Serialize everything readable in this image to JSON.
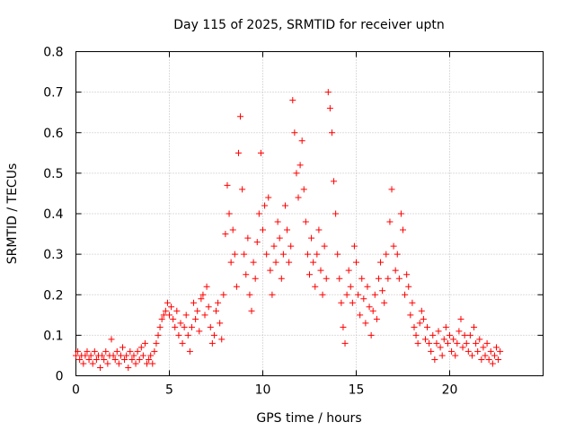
{
  "chart_data": {
    "type": "scatter",
    "title": "Day 115 of 2025, SRMTID for receiver uptn",
    "xlabel": "GPS time / hours",
    "ylabel": "SRMTID / TECUs",
    "xlim": [
      0,
      25
    ],
    "ylim": [
      0,
      0.8
    ],
    "xticks": [
      0,
      5,
      10,
      15,
      20
    ],
    "yticks": [
      0,
      0.1,
      0.2,
      0.3,
      0.4,
      0.5,
      0.6,
      0.7,
      0.8
    ],
    "xtick_labels": [
      "0",
      "5",
      "10",
      "15",
      "20"
    ],
    "ytick_labels": [
      "0",
      "0.1",
      "0.2",
      "0.3",
      "0.4",
      "0.5",
      "0.6",
      "0.7",
      "0.8"
    ],
    "grid": true,
    "marker": "plus",
    "color": "#ff0000",
    "series": [
      {
        "name": "SRMTID",
        "points": [
          [
            0.0,
            0.05
          ],
          [
            0.1,
            0.06
          ],
          [
            0.2,
            0.04
          ],
          [
            0.3,
            0.05
          ],
          [
            0.4,
            0.03
          ],
          [
            0.5,
            0.05
          ],
          [
            0.6,
            0.06
          ],
          [
            0.7,
            0.04
          ],
          [
            0.8,
            0.05
          ],
          [
            0.9,
            0.03
          ],
          [
            1.0,
            0.06
          ],
          [
            1.1,
            0.04
          ],
          [
            1.2,
            0.05
          ],
          [
            1.3,
            0.02
          ],
          [
            1.4,
            0.05
          ],
          [
            1.5,
            0.04
          ],
          [
            1.6,
            0.06
          ],
          [
            1.7,
            0.03
          ],
          [
            1.8,
            0.05
          ],
          [
            1.9,
            0.09
          ],
          [
            2.0,
            0.05
          ],
          [
            2.1,
            0.04
          ],
          [
            2.2,
            0.06
          ],
          [
            2.3,
            0.03
          ],
          [
            2.4,
            0.05
          ],
          [
            2.5,
            0.07
          ],
          [
            2.6,
            0.04
          ],
          [
            2.7,
            0.05
          ],
          [
            2.8,
            0.02
          ],
          [
            2.9,
            0.06
          ],
          [
            3.0,
            0.04
          ],
          [
            3.1,
            0.05
          ],
          [
            3.2,
            0.03
          ],
          [
            3.3,
            0.06
          ],
          [
            3.4,
            0.04
          ],
          [
            3.5,
            0.07
          ],
          [
            3.6,
            0.05
          ],
          [
            3.7,
            0.08
          ],
          [
            3.8,
            0.03
          ],
          [
            3.9,
            0.04
          ],
          [
            4.0,
            0.05
          ],
          [
            4.1,
            0.03
          ],
          [
            4.2,
            0.06
          ],
          [
            4.3,
            0.08
          ],
          [
            4.4,
            0.1
          ],
          [
            4.5,
            0.12
          ],
          [
            4.6,
            0.14
          ],
          [
            4.7,
            0.15
          ],
          [
            4.8,
            0.16
          ],
          [
            4.9,
            0.18
          ],
          [
            5.0,
            0.15
          ],
          [
            5.1,
            0.17
          ],
          [
            5.2,
            0.14
          ],
          [
            5.3,
            0.12
          ],
          [
            5.4,
            0.16
          ],
          [
            5.5,
            0.1
          ],
          [
            5.6,
            0.13
          ],
          [
            5.7,
            0.08
          ],
          [
            5.8,
            0.12
          ],
          [
            5.9,
            0.15
          ],
          [
            6.0,
            0.1
          ],
          [
            6.1,
            0.06
          ],
          [
            6.2,
            0.12
          ],
          [
            6.3,
            0.18
          ],
          [
            6.4,
            0.14
          ],
          [
            6.5,
            0.16
          ],
          [
            6.6,
            0.11
          ],
          [
            6.7,
            0.19
          ],
          [
            6.8,
            0.2
          ],
          [
            6.9,
            0.15
          ],
          [
            7.0,
            0.22
          ],
          [
            7.1,
            0.17
          ],
          [
            7.2,
            0.12
          ],
          [
            7.3,
            0.08
          ],
          [
            7.4,
            0.1
          ],
          [
            7.5,
            0.16
          ],
          [
            7.6,
            0.18
          ],
          [
            7.7,
            0.13
          ],
          [
            7.8,
            0.09
          ],
          [
            7.9,
            0.2
          ],
          [
            8.0,
            0.35
          ],
          [
            8.1,
            0.47
          ],
          [
            8.2,
            0.4
          ],
          [
            8.3,
            0.28
          ],
          [
            8.4,
            0.36
          ],
          [
            8.5,
            0.3
          ],
          [
            8.6,
            0.22
          ],
          [
            8.7,
            0.55
          ],
          [
            8.8,
            0.64
          ],
          [
            8.9,
            0.46
          ],
          [
            9.0,
            0.3
          ],
          [
            9.1,
            0.25
          ],
          [
            9.2,
            0.34
          ],
          [
            9.3,
            0.2
          ],
          [
            9.4,
            0.16
          ],
          [
            9.5,
            0.28
          ],
          [
            9.6,
            0.24
          ],
          [
            9.7,
            0.33
          ],
          [
            9.8,
            0.4
          ],
          [
            9.9,
            0.55
          ],
          [
            10.0,
            0.36
          ],
          [
            10.1,
            0.42
          ],
          [
            10.2,
            0.3
          ],
          [
            10.3,
            0.44
          ],
          [
            10.4,
            0.26
          ],
          [
            10.5,
            0.2
          ],
          [
            10.6,
            0.32
          ],
          [
            10.7,
            0.28
          ],
          [
            10.8,
            0.38
          ],
          [
            10.9,
            0.34
          ],
          [
            11.0,
            0.24
          ],
          [
            11.1,
            0.3
          ],
          [
            11.2,
            0.42
          ],
          [
            11.3,
            0.36
          ],
          [
            11.4,
            0.28
          ],
          [
            11.5,
            0.32
          ],
          [
            11.6,
            0.68
          ],
          [
            11.7,
            0.6
          ],
          [
            11.8,
            0.5
          ],
          [
            11.9,
            0.44
          ],
          [
            12.0,
            0.52
          ],
          [
            12.1,
            0.58
          ],
          [
            12.2,
            0.46
          ],
          [
            12.3,
            0.38
          ],
          [
            12.4,
            0.3
          ],
          [
            12.5,
            0.25
          ],
          [
            12.6,
            0.34
          ],
          [
            12.7,
            0.28
          ],
          [
            12.8,
            0.22
          ],
          [
            12.9,
            0.3
          ],
          [
            13.0,
            0.36
          ],
          [
            13.1,
            0.26
          ],
          [
            13.2,
            0.2
          ],
          [
            13.3,
            0.32
          ],
          [
            13.4,
            0.24
          ],
          [
            13.5,
            0.7
          ],
          [
            13.6,
            0.66
          ],
          [
            13.7,
            0.6
          ],
          [
            13.8,
            0.48
          ],
          [
            13.9,
            0.4
          ],
          [
            14.0,
            0.3
          ],
          [
            14.1,
            0.24
          ],
          [
            14.2,
            0.18
          ],
          [
            14.3,
            0.12
          ],
          [
            14.4,
            0.08
          ],
          [
            14.5,
            0.2
          ],
          [
            14.6,
            0.26
          ],
          [
            14.7,
            0.22
          ],
          [
            14.8,
            0.18
          ],
          [
            14.9,
            0.32
          ],
          [
            15.0,
            0.28
          ],
          [
            15.1,
            0.2
          ],
          [
            15.2,
            0.15
          ],
          [
            15.3,
            0.24
          ],
          [
            15.4,
            0.19
          ],
          [
            15.5,
            0.13
          ],
          [
            15.6,
            0.22
          ],
          [
            15.7,
            0.17
          ],
          [
            15.8,
            0.1
          ],
          [
            15.9,
            0.16
          ],
          [
            16.0,
            0.2
          ],
          [
            16.1,
            0.14
          ],
          [
            16.2,
            0.24
          ],
          [
            16.3,
            0.28
          ],
          [
            16.4,
            0.21
          ],
          [
            16.5,
            0.18
          ],
          [
            16.6,
            0.3
          ],
          [
            16.7,
            0.24
          ],
          [
            16.8,
            0.38
          ],
          [
            16.9,
            0.46
          ],
          [
            17.0,
            0.32
          ],
          [
            17.1,
            0.26
          ],
          [
            17.2,
            0.3
          ],
          [
            17.3,
            0.24
          ],
          [
            17.4,
            0.4
          ],
          [
            17.5,
            0.36
          ],
          [
            17.6,
            0.2
          ],
          [
            17.7,
            0.25
          ],
          [
            17.8,
            0.22
          ],
          [
            17.9,
            0.15
          ],
          [
            18.0,
            0.18
          ],
          [
            18.1,
            0.12
          ],
          [
            18.2,
            0.1
          ],
          [
            18.3,
            0.08
          ],
          [
            18.4,
            0.13
          ],
          [
            18.5,
            0.16
          ],
          [
            18.6,
            0.14
          ],
          [
            18.7,
            0.09
          ],
          [
            18.8,
            0.12
          ],
          [
            18.9,
            0.08
          ],
          [
            19.0,
            0.06
          ],
          [
            19.1,
            0.1
          ],
          [
            19.2,
            0.04
          ],
          [
            19.3,
            0.08
          ],
          [
            19.4,
            0.11
          ],
          [
            19.5,
            0.07
          ],
          [
            19.6,
            0.05
          ],
          [
            19.7,
            0.09
          ],
          [
            19.8,
            0.12
          ],
          [
            19.9,
            0.08
          ],
          [
            20.0,
            0.1
          ],
          [
            20.1,
            0.06
          ],
          [
            20.2,
            0.09
          ],
          [
            20.3,
            0.05
          ],
          [
            20.4,
            0.08
          ],
          [
            20.5,
            0.11
          ],
          [
            20.6,
            0.14
          ],
          [
            20.7,
            0.07
          ],
          [
            20.8,
            0.1
          ],
          [
            20.9,
            0.08
          ],
          [
            21.0,
            0.06
          ],
          [
            21.1,
            0.1
          ],
          [
            21.2,
            0.05
          ],
          [
            21.3,
            0.12
          ],
          [
            21.4,
            0.08
          ],
          [
            21.5,
            0.06
          ],
          [
            21.6,
            0.09
          ],
          [
            21.7,
            0.04
          ],
          [
            21.8,
            0.07
          ],
          [
            21.9,
            0.05
          ],
          [
            22.0,
            0.08
          ],
          [
            22.1,
            0.04
          ],
          [
            22.2,
            0.06
          ],
          [
            22.3,
            0.03
          ],
          [
            22.4,
            0.05
          ],
          [
            22.5,
            0.07
          ],
          [
            22.6,
            0.04
          ],
          [
            22.7,
            0.06
          ]
        ]
      }
    ]
  }
}
